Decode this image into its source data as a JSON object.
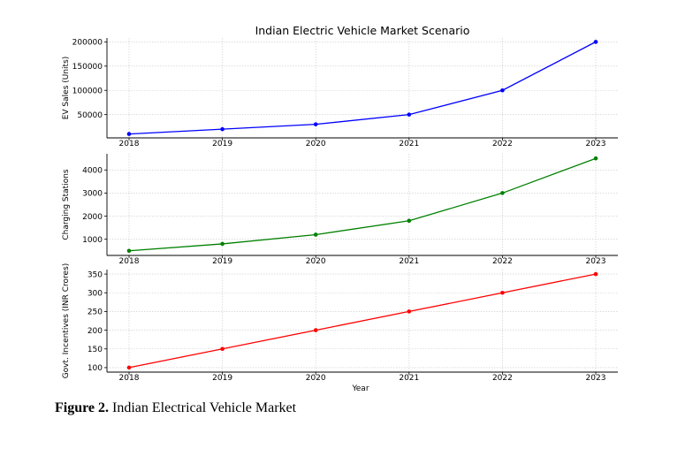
{
  "chart_data": [
    {
      "type": "line",
      "title": "Indian Electric Vehicle Market Scenario",
      "xlabel": "",
      "ylabel": "EV Sales (Units)",
      "x": [
        2018,
        2019,
        2020,
        2021,
        2022,
        2023
      ],
      "x_tick_labels": [
        "2018",
        "2019",
        "2020",
        "2021",
        "2022",
        "2023"
      ],
      "series": [
        {
          "values": [
            10000,
            20000,
            30000,
            50000,
            100000,
            200000
          ],
          "color": "#0000ff"
        }
      ],
      "ylim": [
        2000,
        208000
      ],
      "yticks": [
        50000,
        100000,
        150000,
        200000
      ],
      "ytick_labels": [
        "50000",
        "100000",
        "150000",
        "200000"
      ],
      "grid": true
    },
    {
      "type": "line",
      "title": "",
      "xlabel": "",
      "ylabel": "Charging Stations",
      "x": [
        2018,
        2019,
        2020,
        2021,
        2022,
        2023
      ],
      "x_tick_labels": [
        "2018",
        "2019",
        "2020",
        "2021",
        "2022",
        "2023"
      ],
      "series": [
        {
          "values": [
            500,
            800,
            1200,
            1800,
            3000,
            4500
          ],
          "color": "#008000"
        }
      ],
      "ylim": [
        300,
        4700
      ],
      "yticks": [
        1000,
        2000,
        3000,
        4000
      ],
      "ytick_labels": [
        "1000",
        "2000",
        "3000",
        "4000"
      ],
      "grid": true
    },
    {
      "type": "line",
      "title": "",
      "xlabel": "Year",
      "ylabel": "Govt. Incentives (INR Crores)",
      "x": [
        2018,
        2019,
        2020,
        2021,
        2022,
        2023
      ],
      "x_tick_labels": [
        "2018",
        "2019",
        "2020",
        "2021",
        "2022",
        "2023"
      ],
      "series": [
        {
          "values": [
            100,
            150,
            200,
            250,
            300,
            350
          ],
          "color": "#ff0000"
        }
      ],
      "ylim": [
        88,
        362
      ],
      "yticks": [
        100,
        150,
        200,
        250,
        300,
        350
      ],
      "ytick_labels": [
        "100",
        "150",
        "200",
        "250",
        "300",
        "350"
      ],
      "grid": true
    }
  ],
  "caption": {
    "label": "Figure 2.",
    "text": " Indian Electrical Vehicle Market"
  }
}
